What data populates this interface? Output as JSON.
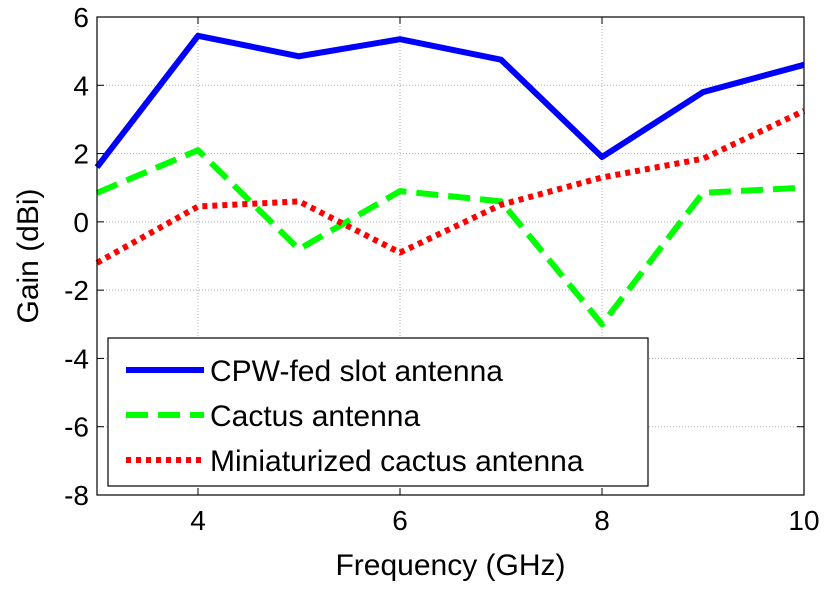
{
  "chart_data": {
    "type": "line",
    "title": "",
    "xlabel": "Frequency (GHz)",
    "ylabel": "Gain (dBi)",
    "xlim": [
      3,
      10
    ],
    "ylim": [
      -8,
      6
    ],
    "xticks": [
      4,
      6,
      8,
      10
    ],
    "yticks": [
      -8,
      -6,
      -4,
      -2,
      0,
      2,
      4,
      6
    ],
    "grid": true,
    "legend_position": "bottom-left",
    "series": [
      {
        "name": "CPW-fed slot antenna",
        "color": "#0000ff",
        "style": "solid",
        "x": [
          3,
          4,
          5,
          6,
          7,
          8,
          9,
          10
        ],
        "y": [
          1.6,
          5.45,
          4.85,
          5.35,
          4.75,
          1.9,
          3.8,
          4.6
        ]
      },
      {
        "name": "Cactus antenna",
        "color": "#00ff00",
        "style": "dashed",
        "x": [
          3,
          4,
          5,
          6,
          7,
          8,
          9,
          10
        ],
        "y": [
          0.85,
          2.1,
          -0.8,
          0.9,
          0.6,
          -3.0,
          0.85,
          1.0
        ]
      },
      {
        "name": "Miniaturized cactus antenna",
        "color": "#ff0000",
        "style": "dotted",
        "x": [
          3,
          4,
          5,
          6,
          7,
          8,
          9,
          10
        ],
        "y": [
          -1.2,
          0.45,
          0.6,
          -0.9,
          0.5,
          1.3,
          1.85,
          3.25
        ]
      }
    ]
  }
}
